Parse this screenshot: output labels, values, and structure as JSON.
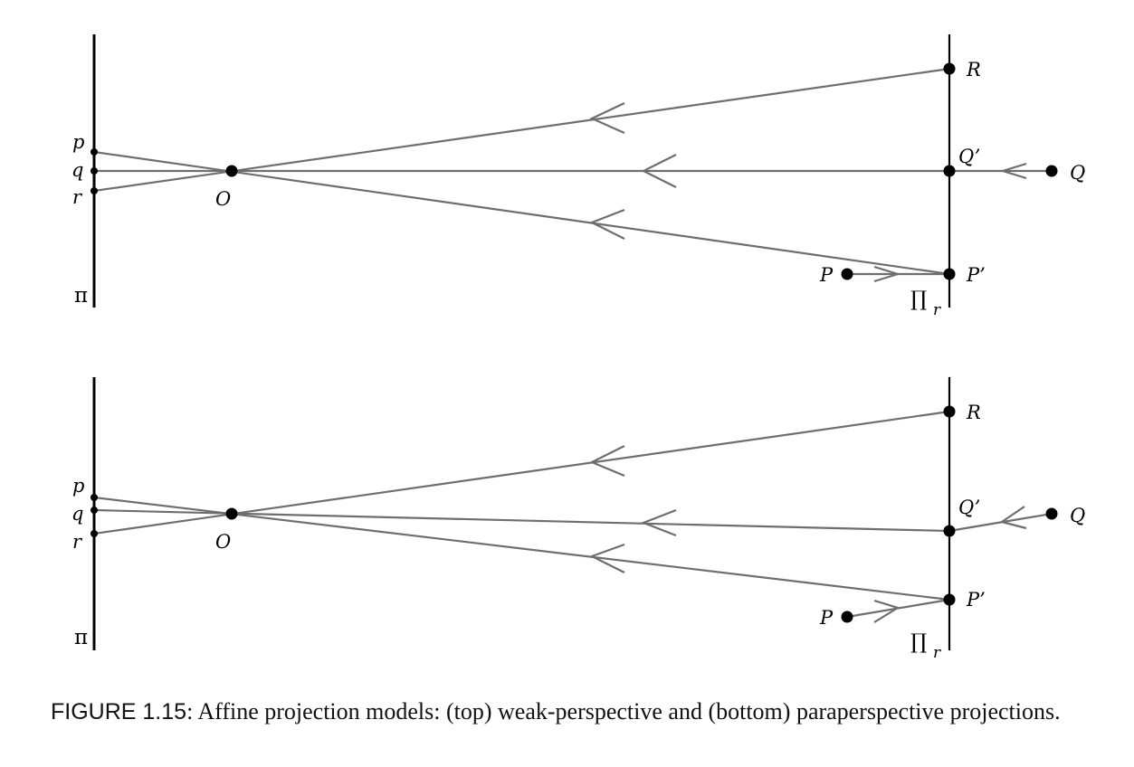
{
  "panels": [
    {
      "id": "top",
      "image_plane_label": "π",
      "reference_plane_label": "∏",
      "reference_plane_sub": "r",
      "image_points": [
        "p",
        "q",
        "r"
      ],
      "center_label": "O",
      "points": {
        "R": "R",
        "Qp": "Q’",
        "Q": "Q",
        "P": "P",
        "Pp": "P’"
      }
    },
    {
      "id": "bottom",
      "image_plane_label": "π",
      "reference_plane_label": "∏",
      "reference_plane_sub": "r",
      "image_points": [
        "p",
        "q",
        "r"
      ],
      "center_label": "O",
      "points": {
        "R": "R",
        "Qp": "Q’",
        "Q": "Q",
        "P": "P",
        "Pp": "P’"
      }
    }
  ],
  "caption": {
    "figure_label": "FIGURE 1.15",
    "text": ": Affine projection models: (top) weak-perspective and (bottom) paraperspective projections."
  }
}
